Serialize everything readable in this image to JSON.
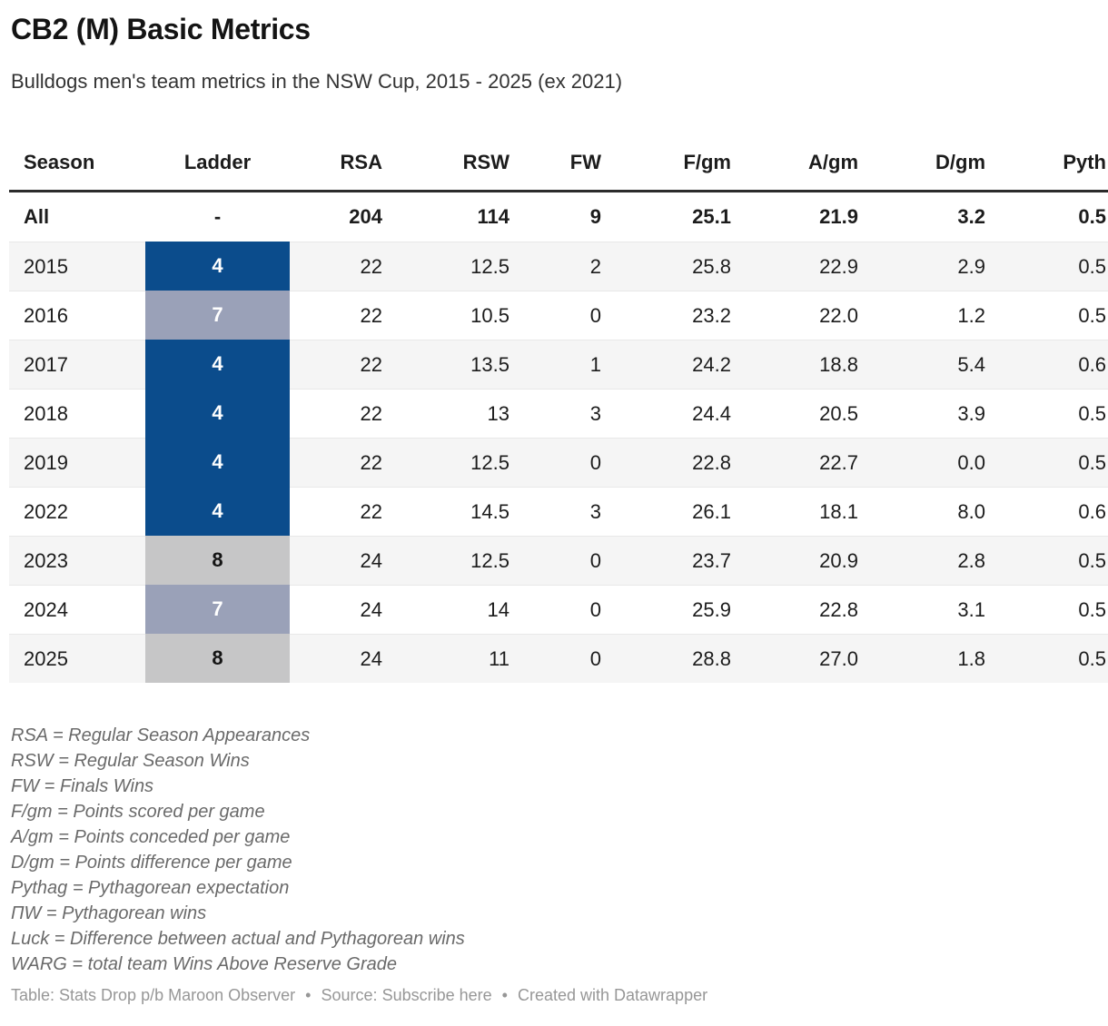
{
  "header": {
    "title": "CB2 (M) Basic Metrics",
    "subtitle": "Bulldogs men's team metrics in the NSW Cup, 2015 - 2025 (ex 2021)"
  },
  "chart_data": {
    "type": "table",
    "title": "CB2 (M) Basic Metrics",
    "subtitle": "Bulldogs men's team metrics in the NSW Cup, 2015 - 2025 (ex 2021)",
    "columns": [
      {
        "key": "season",
        "label": "Season",
        "align": "left"
      },
      {
        "key": "ladder",
        "label": "Ladder",
        "align": "center"
      },
      {
        "key": "rsa",
        "label": "RSA",
        "align": "right"
      },
      {
        "key": "rsw",
        "label": "RSW",
        "align": "right"
      },
      {
        "key": "fw",
        "label": "FW",
        "align": "right"
      },
      {
        "key": "fgm",
        "label": "F/gm",
        "align": "right"
      },
      {
        "key": "agm",
        "label": "A/gm",
        "align": "right"
      },
      {
        "key": "dgm",
        "label": "D/gm",
        "align": "right"
      },
      {
        "key": "pyth",
        "label": "Pyth",
        "align": "right",
        "clipped_at_right_edge": true
      }
    ],
    "rows": [
      {
        "season": "All",
        "ladder": "-",
        "rsa": "204",
        "rsw": "114",
        "fw": "9",
        "fgm": "25.1",
        "agm": "21.9",
        "dgm": "3.2",
        "pyth": "0.5",
        "bold": true
      },
      {
        "season": "2015",
        "ladder": "4",
        "rsa": "22",
        "rsw": "12.5",
        "fw": "2",
        "fgm": "25.8",
        "agm": "22.9",
        "dgm": "2.9",
        "pyth": "0.5"
      },
      {
        "season": "2016",
        "ladder": "7",
        "rsa": "22",
        "rsw": "10.5",
        "fw": "0",
        "fgm": "23.2",
        "agm": "22.0",
        "dgm": "1.2",
        "pyth": "0.5"
      },
      {
        "season": "2017",
        "ladder": "4",
        "rsa": "22",
        "rsw": "13.5",
        "fw": "1",
        "fgm": "24.2",
        "agm": "18.8",
        "dgm": "5.4",
        "pyth": "0.6"
      },
      {
        "season": "2018",
        "ladder": "4",
        "rsa": "22",
        "rsw": "13",
        "fw": "3",
        "fgm": "24.4",
        "agm": "20.5",
        "dgm": "3.9",
        "pyth": "0.5"
      },
      {
        "season": "2019",
        "ladder": "4",
        "rsa": "22",
        "rsw": "12.5",
        "fw": "0",
        "fgm": "22.8",
        "agm": "22.7",
        "dgm": "0.0",
        "pyth": "0.5"
      },
      {
        "season": "2022",
        "ladder": "4",
        "rsa": "22",
        "rsw": "14.5",
        "fw": "3",
        "fgm": "26.1",
        "agm": "18.1",
        "dgm": "8.0",
        "pyth": "0.6"
      },
      {
        "season": "2023",
        "ladder": "8",
        "rsa": "24",
        "rsw": "12.5",
        "fw": "0",
        "fgm": "23.7",
        "agm": "20.9",
        "dgm": "2.8",
        "pyth": "0.5"
      },
      {
        "season": "2024",
        "ladder": "7",
        "rsa": "24",
        "rsw": "14",
        "fw": "0",
        "fgm": "25.9",
        "agm": "22.8",
        "dgm": "3.1",
        "pyth": "0.5"
      },
      {
        "season": "2025",
        "ladder": "8",
        "rsa": "24",
        "rsw": "11",
        "fw": "0",
        "fgm": "28.8",
        "agm": "27.0",
        "dgm": "1.8",
        "pyth": "0.5"
      }
    ],
    "ladder_styles": {
      "4": {
        "bg": "#0b4c8c",
        "fg": "#ffffff"
      },
      "7": {
        "bg": "#9aa1b8",
        "fg": "#ffffff"
      },
      "8": {
        "bg": "#c6c6c7",
        "fg": "#141414"
      }
    },
    "row_stripe_color": "#f5f5f5",
    "header_rule_color": "#2b2b2b",
    "grid": "horizontal-only"
  },
  "footnotes": [
    "RSA = Regular Season Appearances",
    "RSW = Regular Season Wins",
    "FW = Finals Wins",
    "F/gm = Points scored per game",
    "A/gm = Points conceded per game",
    "D/gm = Points difference per game",
    "Pythag = Pythagorean expectation",
    "ΠW = Pythagorean wins",
    "Luck = Difference between actual and Pythagorean wins",
    "WARG = total team Wins Above Reserve Grade"
  ],
  "footer": {
    "table_credit": "Table: Stats Drop p/b Maroon Observer",
    "separator": "•",
    "source_label": "Source:",
    "source_link": "Subscribe here",
    "created": "Created with Datawrapper"
  }
}
